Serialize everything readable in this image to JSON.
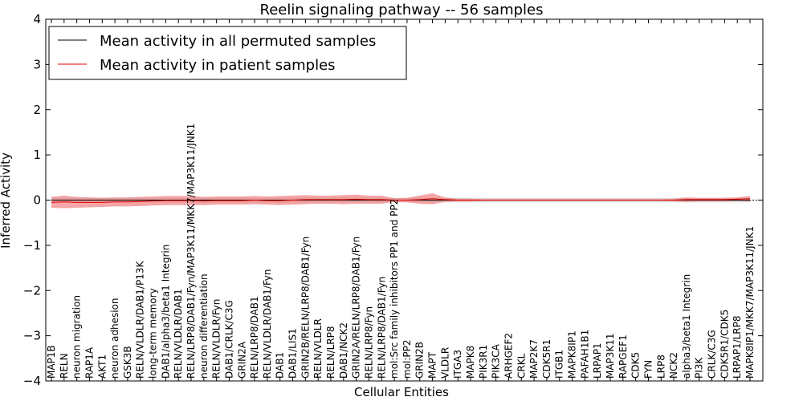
{
  "chart_data": {
    "type": "line",
    "title": "Reelin signaling pathway -- 56 samples",
    "xlabel": "Cellular Entities",
    "ylabel": "Inferred Activity",
    "ylim": [
      -4,
      4
    ],
    "yticks": [
      -4,
      -3,
      -2,
      -1,
      0,
      1,
      2,
      3,
      4
    ],
    "ytick_labels": [
      "−4",
      "−3",
      "−2",
      "−1",
      "0",
      "1",
      "2",
      "3",
      "4"
    ],
    "grid": false,
    "legend_position": "top-left",
    "categories": [
      "MAP1B",
      "RELN",
      "neuron migration",
      "RAP1A",
      "AKT1",
      "neuron adhesion",
      "GSK3B",
      "RELN/VLDLR/DAB1/P13K",
      "long-term memory",
      "DAB1/alpha3/beta1 Integrin",
      "RELN/VLDLR/DAB1",
      "RELN/LRP8/DAB1/Fyn/MAP3K11/MKK7/MAP3K11/JNK1",
      "neuron differentiation",
      "RELN/VLDLR/Fyn",
      "DAB1/CRLK/C3G",
      "GRIN2A",
      "RELN/LRP8/DAB1",
      "RELN/VLDLR/DAB1/Fyn",
      "DAB1",
      "DAB1/LIS1",
      "GRIN2B/RELN/LRP8/DAB1/Fyn",
      "RELN/VLDLR",
      "RELN/LRP8",
      "DAB1/NCK2",
      "GRIN2A/RELN/LRP8/DAB1/Fyn",
      "RELN/LRP8/Fyn",
      "RELN/LRP8/DAB1/Fyn",
      "mol:Src family inhibitors PP1 and PP2",
      "mol:PP2",
      "GRIN2B",
      "MAPT",
      "VLDLR",
      "ITGA3",
      "MAPK8",
      "PIK3R1",
      "PIK3CA",
      "ARHGEF2",
      "CRKL",
      "MAP2K7",
      "CDK5R1",
      "ITGB1",
      "MAPK8IP1",
      "PAFAH1B1",
      "LRPAP1",
      "MAP3K11",
      "RAPGEF1",
      "CDK5",
      "FYN",
      "LRP8",
      "NCK2",
      "alpha3/beta1 Integrin",
      "PI3K",
      "CRLK/C3G",
      "CDK5R1/CDK5",
      "LRPAP1/LRP8",
      "MAPK8IP1/MKK7/MAP3K11/JNK1"
    ],
    "series": [
      {
        "name": "Mean activity in all permuted samples",
        "color": "#000000",
        "values": [
          0.0,
          0.0,
          0.0,
          0.0,
          0.0,
          0.0,
          0.0,
          0.0,
          0.0,
          0.0,
          0.0,
          0.0,
          0.0,
          0.0,
          0.0,
          0.0,
          0.0,
          0.0,
          0.0,
          0.0,
          0.0,
          0.0,
          0.0,
          0.0,
          0.0,
          0.0,
          0.0,
          0.0,
          0.0,
          0.0,
          0.0,
          0.0,
          0.0,
          0.0,
          0.0,
          0.0,
          0.0,
          0.0,
          0.0,
          0.0,
          0.0,
          0.0,
          0.0,
          0.0,
          0.0,
          0.0,
          0.0,
          0.0,
          0.0,
          0.0,
          0.0,
          0.0,
          0.0,
          0.0,
          0.0,
          0.0
        ],
        "band": [
          0.05,
          0.05,
          0.05,
          0.05,
          0.05,
          0.05,
          0.05,
          0.05,
          0.05,
          0.05,
          0.05,
          0.05,
          0.05,
          0.05,
          0.05,
          0.05,
          0.05,
          0.05,
          0.05,
          0.05,
          0.05,
          0.05,
          0.05,
          0.05,
          0.05,
          0.05,
          0.05,
          0.05,
          0.05,
          0.05,
          0.05,
          0.05,
          0.05,
          0.05,
          0.05,
          0.05,
          0.05,
          0.05,
          0.05,
          0.05,
          0.05,
          0.05,
          0.05,
          0.05,
          0.05,
          0.05,
          0.05,
          0.05,
          0.05,
          0.05,
          0.05,
          0.05,
          0.05,
          0.05,
          0.05,
          0.05
        ],
        "band_color": "#c8c8c8"
      },
      {
        "name": "Mean activity in patient samples",
        "color": "#e00000",
        "values": [
          -0.05,
          -0.04,
          -0.05,
          -0.05,
          -0.05,
          -0.04,
          -0.04,
          -0.03,
          -0.02,
          -0.01,
          -0.01,
          -0.01,
          -0.02,
          -0.01,
          -0.01,
          -0.01,
          0.0,
          -0.01,
          -0.01,
          0.0,
          0.01,
          0.01,
          0.01,
          0.01,
          0.02,
          0.01,
          0.01,
          0.0,
          0.0,
          0.01,
          0.03,
          0.01,
          0.0,
          0.0,
          0.0,
          0.0,
          0.0,
          0.0,
          0.0,
          0.0,
          0.0,
          0.0,
          0.0,
          0.0,
          0.0,
          0.0,
          0.0,
          0.0,
          0.0,
          0.0,
          0.01,
          0.01,
          0.01,
          0.01,
          0.02,
          0.03
        ],
        "band": [
          0.12,
          0.14,
          0.12,
          0.11,
          0.1,
          0.1,
          0.1,
          0.1,
          0.1,
          0.1,
          0.1,
          0.1,
          0.09,
          0.09,
          0.09,
          0.09,
          0.09,
          0.09,
          0.1,
          0.1,
          0.1,
          0.09,
          0.09,
          0.1,
          0.1,
          0.09,
          0.09,
          0.04,
          0.05,
          0.09,
          0.12,
          0.05,
          0.03,
          0.03,
          0.02,
          0.02,
          0.02,
          0.02,
          0.02,
          0.02,
          0.02,
          0.02,
          0.02,
          0.02,
          0.02,
          0.02,
          0.02,
          0.02,
          0.02,
          0.03,
          0.05,
          0.04,
          0.04,
          0.04,
          0.04,
          0.06
        ],
        "band_color": "#f08080"
      }
    ]
  }
}
